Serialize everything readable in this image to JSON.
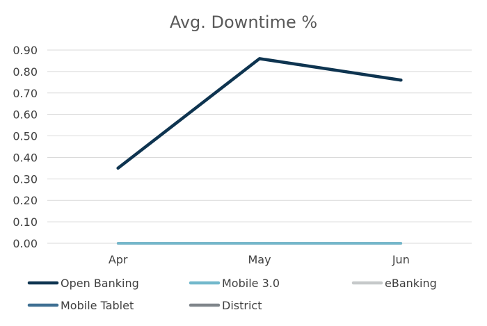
{
  "chart_data": {
    "type": "line",
    "title": "Avg. Downtime %",
    "categories": [
      "Apr",
      "May",
      "Jun"
    ],
    "y_ticks": [
      "0.00",
      "0.10",
      "0.20",
      "0.30",
      "0.40",
      "0.50",
      "0.60",
      "0.70",
      "0.80",
      "0.90"
    ],
    "ylim": [
      0,
      0.9
    ],
    "grid": true,
    "legend_position": "bottom",
    "series": [
      {
        "name": "Open Banking",
        "color": "#0e3450",
        "values": [
          0.35,
          0.86,
          0.76
        ]
      },
      {
        "name": "Mobile 3.0",
        "color": "#72b8cc",
        "values": [
          0,
          0,
          0
        ]
      },
      {
        "name": "eBanking",
        "color": "#c6c9ca",
        "values": [
          0,
          0,
          0
        ]
      },
      {
        "name": "Mobile Tablet",
        "color": "#3e6f92",
        "values": [
          0,
          0,
          0
        ]
      },
      {
        "name": "District",
        "color": "#7f858a",
        "values": [
          0,
          0,
          0
        ]
      }
    ]
  }
}
